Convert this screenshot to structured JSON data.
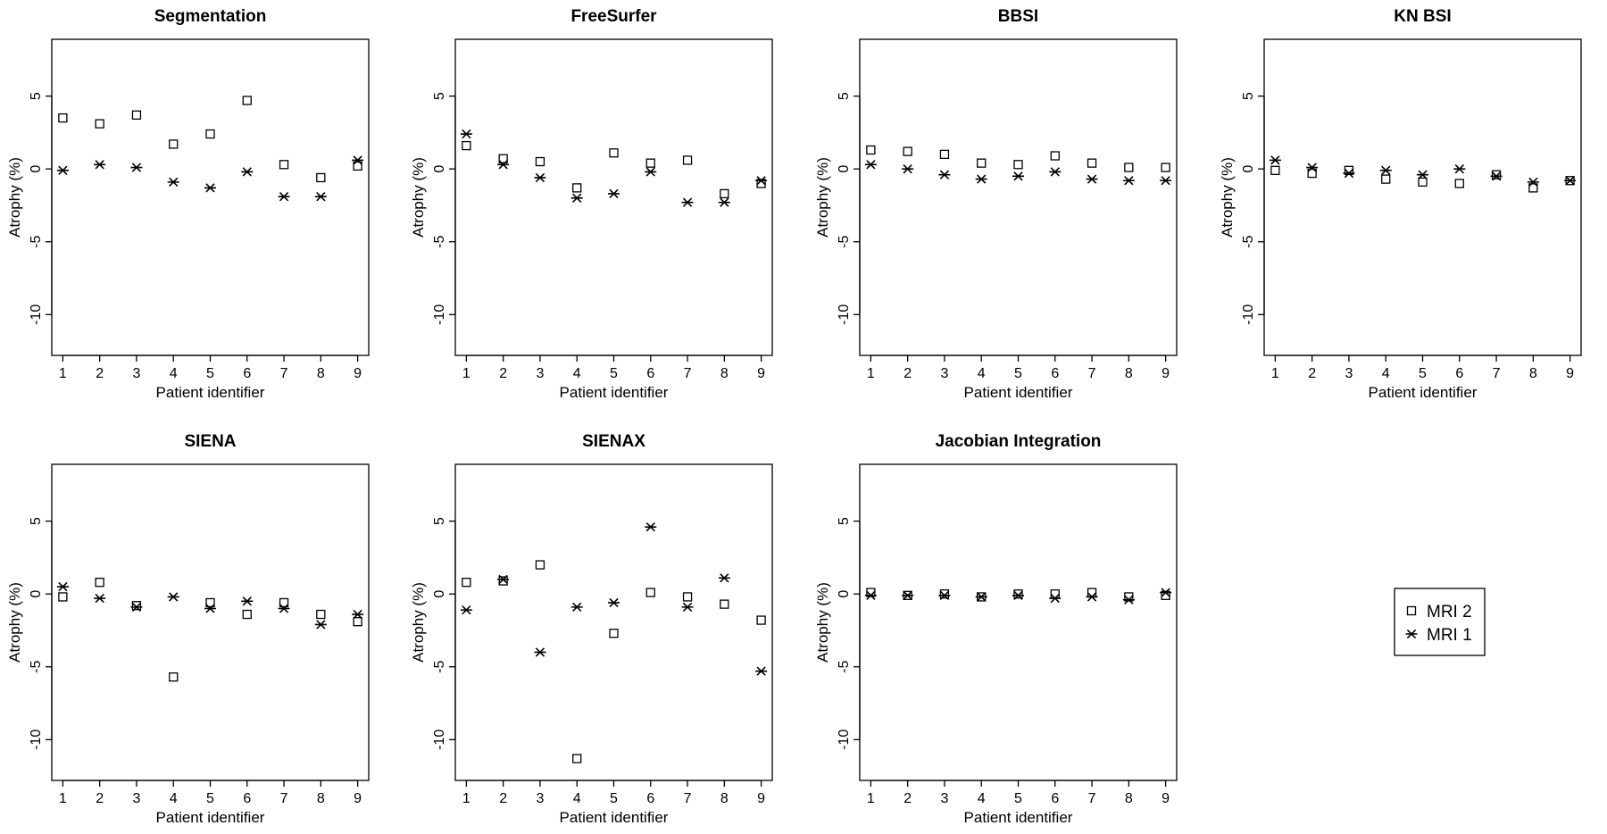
{
  "figure": {
    "legend": {
      "placement": "right",
      "entries": [
        {
          "label": "MRI 2",
          "marker": "square"
        },
        {
          "label": "MRI 1",
          "marker": "asterisk"
        }
      ]
    }
  },
  "chart_data": [
    {
      "type": "scatter",
      "title": "Segmentation",
      "xlabel": "Patient identifier",
      "ylabel": "Atrophy (%)",
      "x": [
        1,
        2,
        3,
        4,
        5,
        6,
        7,
        8,
        9
      ],
      "xlim": [
        0.7,
        9.3
      ],
      "ylim": [
        -12.8,
        8.9
      ],
      "yticks": [
        5,
        0,
        -5,
        -10
      ],
      "grid": false,
      "series": [
        {
          "name": "MRI 2",
          "marker": "square",
          "values": [
            3.5,
            3.1,
            3.7,
            1.7,
            2.4,
            4.7,
            0.3,
            -0.6,
            0.2
          ]
        },
        {
          "name": "MRI 1",
          "marker": "asterisk",
          "values": [
            -0.1,
            0.3,
            0.1,
            -0.9,
            -1.3,
            -0.2,
            -1.9,
            -1.9,
            0.6
          ]
        }
      ]
    },
    {
      "type": "scatter",
      "title": "FreeSurfer",
      "xlabel": "Patient identifier",
      "ylabel": "Atrophy (%)",
      "x": [
        1,
        2,
        3,
        4,
        5,
        6,
        7,
        8,
        9
      ],
      "xlim": [
        0.7,
        9.3
      ],
      "ylim": [
        -12.8,
        8.9
      ],
      "yticks": [
        5,
        0,
        -5,
        -10
      ],
      "grid": false,
      "series": [
        {
          "name": "MRI 2",
          "marker": "square",
          "values": [
            1.6,
            0.7,
            0.5,
            -1.3,
            1.1,
            0.4,
            0.6,
            -1.7,
            -1.0
          ]
        },
        {
          "name": "MRI 1",
          "marker": "asterisk",
          "values": [
            2.4,
            0.3,
            -0.6,
            -2.0,
            -1.7,
            -0.2,
            -2.3,
            -2.3,
            -0.8
          ]
        }
      ]
    },
    {
      "type": "scatter",
      "title": "BBSI",
      "xlabel": "Patient identifier",
      "ylabel": "Atrophy (%)",
      "x": [
        1,
        2,
        3,
        4,
        5,
        6,
        7,
        8,
        9
      ],
      "xlim": [
        0.7,
        9.3
      ],
      "ylim": [
        -12.8,
        8.9
      ],
      "yticks": [
        5,
        0,
        -5,
        -10
      ],
      "grid": false,
      "series": [
        {
          "name": "MRI 2",
          "marker": "square",
          "values": [
            1.3,
            1.2,
            1.0,
            0.4,
            0.3,
            0.9,
            0.4,
            0.1,
            0.1
          ]
        },
        {
          "name": "MRI 1",
          "marker": "asterisk",
          "values": [
            0.3,
            0.0,
            -0.4,
            -0.7,
            -0.5,
            -0.2,
            -0.7,
            -0.8,
            -0.8
          ]
        }
      ]
    },
    {
      "type": "scatter",
      "title": "KN BSI",
      "xlabel": "Patient identifier",
      "ylabel": "Atrophy (%)",
      "x": [
        1,
        2,
        3,
        4,
        5,
        6,
        7,
        8,
        9
      ],
      "xlim": [
        0.7,
        9.3
      ],
      "ylim": [
        -12.8,
        8.9
      ],
      "yticks": [
        5,
        0,
        -5,
        -10
      ],
      "grid": false,
      "series": [
        {
          "name": "MRI 2",
          "marker": "square",
          "values": [
            -0.1,
            -0.3,
            -0.1,
            -0.7,
            -0.9,
            -1.0,
            -0.4,
            -1.3,
            -0.8
          ]
        },
        {
          "name": "MRI 1",
          "marker": "asterisk",
          "values": [
            0.6,
            0.1,
            -0.3,
            -0.1,
            -0.4,
            0.0,
            -0.5,
            -0.9,
            -0.8
          ]
        }
      ]
    },
    {
      "type": "scatter",
      "title": "SIENA",
      "xlabel": "Patient identifier",
      "ylabel": "Atrophy (%)",
      "x": [
        1,
        2,
        3,
        4,
        5,
        6,
        7,
        8,
        9
      ],
      "xlim": [
        0.7,
        9.3
      ],
      "ylim": [
        -12.8,
        8.9
      ],
      "yticks": [
        5,
        0,
        -5,
        -10
      ],
      "grid": false,
      "series": [
        {
          "name": "MRI 2",
          "marker": "square",
          "values": [
            -0.2,
            0.8,
            -0.8,
            -5.7,
            -0.6,
            -1.4,
            -0.6,
            -1.4,
            -1.9
          ]
        },
        {
          "name": "MRI 1",
          "marker": "asterisk",
          "values": [
            0.5,
            -0.3,
            -0.9,
            -0.2,
            -1.0,
            -0.5,
            -1.0,
            -2.1,
            -1.4
          ]
        }
      ]
    },
    {
      "type": "scatter",
      "title": "SIENAX",
      "xlabel": "Patient identifier",
      "ylabel": "Atrophy (%)",
      "x": [
        1,
        2,
        3,
        4,
        5,
        6,
        7,
        8,
        9
      ],
      "xlim": [
        0.7,
        9.3
      ],
      "ylim": [
        -12.8,
        8.9
      ],
      "yticks": [
        5,
        0,
        -5,
        -10
      ],
      "grid": false,
      "series": [
        {
          "name": "MRI 2",
          "marker": "square",
          "values": [
            0.8,
            0.9,
            2.0,
            -11.3,
            -2.7,
            0.1,
            -0.2,
            -0.7,
            -1.8
          ]
        },
        {
          "name": "MRI 1",
          "marker": "asterisk",
          "values": [
            -1.1,
            1.0,
            -4.0,
            -0.9,
            -0.6,
            4.6,
            -0.9,
            1.1,
            -5.3
          ]
        }
      ]
    },
    {
      "type": "scatter",
      "title": "Jacobian Integration",
      "xlabel": "Patient identifier",
      "ylabel": "Atrophy (%)",
      "x": [
        1,
        2,
        3,
        4,
        5,
        6,
        7,
        8,
        9
      ],
      "xlim": [
        0.7,
        9.3
      ],
      "ylim": [
        -12.8,
        8.9
      ],
      "yticks": [
        5,
        0,
        -5,
        -10
      ],
      "grid": false,
      "series": [
        {
          "name": "MRI 2",
          "marker": "square",
          "values": [
            0.1,
            -0.1,
            0.0,
            -0.2,
            0.0,
            0.0,
            0.1,
            -0.2,
            -0.1
          ]
        },
        {
          "name": "MRI 1",
          "marker": "asterisk",
          "values": [
            -0.1,
            -0.1,
            -0.1,
            -0.2,
            -0.1,
            -0.3,
            -0.2,
            -0.4,
            0.1
          ]
        }
      ]
    }
  ]
}
